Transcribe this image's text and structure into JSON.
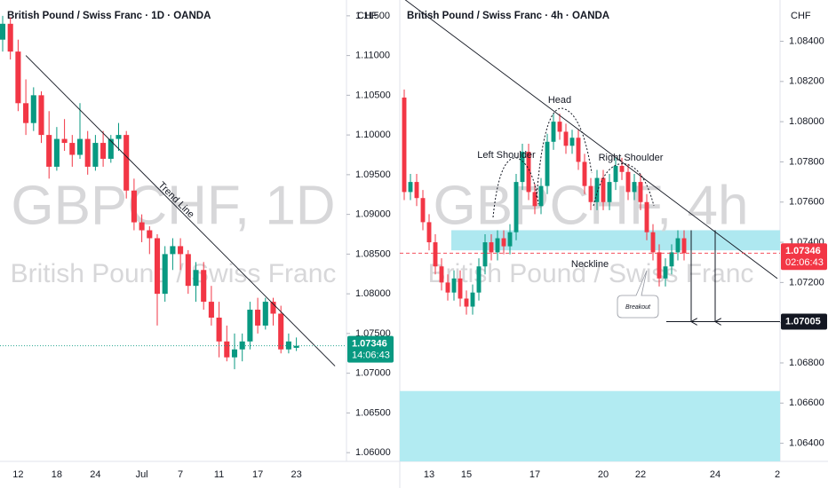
{
  "chart_data": [
    {
      "type": "candlestick",
      "title": "British Pound / Swiss Franc · 1D · OANDA",
      "currency": "CHF",
      "watermark": "GBPCHF, 1D",
      "watermark_subtitle": "British Pound / Swiss Franc",
      "up_color": "#089981",
      "down_color": "#f23645",
      "grid": false,
      "ylim": [
        1.0589,
        1.1161
      ],
      "yticks": [
        {
          "value": 1.06,
          "label": "1.06000"
        },
        {
          "value": 1.065,
          "label": "1.06500"
        },
        {
          "value": 1.07,
          "label": "1.07000"
        },
        {
          "value": 1.075,
          "label": "1.07500"
        },
        {
          "value": 1.08,
          "label": "1.08000"
        },
        {
          "value": 1.085,
          "label": "1.08500"
        },
        {
          "value": 1.09,
          "label": "1.09000"
        },
        {
          "value": 1.095,
          "label": "1.09500"
        },
        {
          "value": 1.1,
          "label": "1.10000"
        },
        {
          "value": 1.105,
          "label": "1.10500"
        },
        {
          "value": 1.11,
          "label": "1.11000"
        },
        {
          "value": 1.115,
          "label": "1.11500"
        }
      ],
      "categories": [
        null,
        null,
        "12",
        null,
        null,
        null,
        null,
        "18",
        null,
        null,
        null,
        null,
        "24",
        null,
        null,
        null,
        null,
        null,
        "Jul",
        null,
        null,
        null,
        null,
        "7",
        null,
        null,
        null,
        null,
        "11",
        null,
        null,
        null,
        null,
        "17",
        null,
        null,
        null,
        null,
        "23"
      ],
      "open": [
        1.112,
        1.114,
        1.1105,
        1.104,
        1.1015,
        1.105,
        1.1,
        1.096,
        1.0995,
        1.099,
        1.0975,
        1.0995,
        1.096,
        1.099,
        1.097,
        1.0995,
        1.1,
        1.093,
        1.089,
        1.088,
        1.087,
        1.08,
        1.085,
        1.086,
        1.085,
        1.081,
        1.083,
        1.079,
        1.077,
        1.074,
        1.072,
        1.073,
        1.074,
        1.078,
        1.076,
        1.079,
        1.0775,
        1.073,
        1.0732
      ],
      "high": [
        1.115,
        1.1148,
        1.112,
        1.107,
        1.106,
        1.1055,
        1.103,
        1.101,
        1.102,
        1.1,
        1.104,
        1.1005,
        1.1,
        1.1005,
        1.1,
        1.1015,
        1.1005,
        1.0945,
        1.09,
        1.0885,
        1.0875,
        1.086,
        1.087,
        1.087,
        1.0855,
        1.084,
        1.084,
        1.081,
        1.079,
        1.076,
        1.075,
        1.075,
        1.079,
        1.0795,
        1.0795,
        1.0795,
        1.0785,
        1.075,
        1.0745
      ],
      "low": [
        1.1105,
        1.1095,
        1.103,
        1.1,
        1.1005,
        1.099,
        1.0945,
        1.0955,
        1.098,
        1.096,
        1.097,
        1.095,
        1.0955,
        1.096,
        1.0965,
        1.098,
        1.092,
        1.088,
        1.0865,
        1.085,
        1.076,
        1.079,
        1.083,
        1.083,
        1.08,
        1.079,
        1.078,
        1.076,
        1.072,
        1.0715,
        1.0705,
        1.0715,
        1.073,
        1.075,
        1.0755,
        1.076,
        1.0725,
        1.0725,
        1.0728
      ],
      "close": [
        1.114,
        1.1105,
        1.104,
        1.1015,
        1.105,
        1.1,
        1.096,
        1.0995,
        1.099,
        1.0975,
        1.0995,
        1.096,
        1.099,
        1.097,
        1.0995,
        1.1,
        1.093,
        1.089,
        1.088,
        1.087,
        1.08,
        1.085,
        1.086,
        1.085,
        1.081,
        1.083,
        1.079,
        1.077,
        1.074,
        1.072,
        1.073,
        1.074,
        1.078,
        1.076,
        1.079,
        1.0775,
        1.073,
        1.074,
        1.07346
      ],
      "countdown": "14:06:43",
      "trend_line": {
        "label": "Trend Line",
        "from": [
          3,
          1.11
        ],
        "to": [
          43,
          1.0709
        ]
      }
    },
    {
      "type": "candlestick",
      "title": "British Pound / Swiss Franc · 4h · OANDA",
      "currency": "CHF",
      "watermark": "GBPCHF, 4h",
      "watermark_subtitle": "British Pound / Swiss Franc",
      "up_color": "#089981",
      "down_color": "#f23645",
      "grid": false,
      "ylim": [
        1.0631,
        1.0857
      ],
      "yticks": [
        {
          "value": 1.064,
          "label": "1.06400"
        },
        {
          "value": 1.066,
          "label": "1.06600"
        },
        {
          "value": 1.068,
          "label": "1.06800"
        },
        {
          "value": 1.07,
          "label": "1.07000"
        },
        {
          "value": 1.072,
          "label": "1.07200"
        },
        {
          "value": 1.074,
          "label": "1.07400"
        },
        {
          "value": 1.076,
          "label": "1.07600"
        },
        {
          "value": 1.078,
          "label": "1.07800"
        },
        {
          "value": 1.08,
          "label": "1.08000"
        },
        {
          "value": 1.082,
          "label": "1.08200"
        },
        {
          "value": 1.084,
          "label": "1.08400"
        }
      ],
      "categories": [
        null,
        null,
        null,
        null,
        "13",
        null,
        null,
        null,
        null,
        null,
        "15",
        null,
        null,
        null,
        null,
        null,
        null,
        null,
        null,
        null,
        null,
        "17",
        null,
        null,
        null,
        null,
        null,
        null,
        null,
        null,
        null,
        null,
        "20",
        null,
        null,
        null,
        null,
        null,
        "22",
        null,
        null,
        null,
        null,
        null,
        null,
        null,
        null,
        null,
        null,
        null,
        "24",
        null,
        null,
        null,
        null,
        null,
        null,
        null,
        null,
        null,
        "2"
      ],
      "open": [
        1.0812,
        1.0765,
        1.077,
        1.0762,
        1.075,
        1.074,
        1.0728,
        1.072,
        1.0715,
        1.0722,
        1.0712,
        1.0708,
        1.0715,
        1.0728,
        1.074,
        1.0735,
        1.0742,
        1.0738,
        1.0745,
        1.077,
        1.0785,
        1.0765,
        1.0758,
        1.0768,
        1.079,
        1.08,
        1.0795,
        1.0788,
        1.0792,
        1.078,
        1.0768,
        1.076,
        1.0772,
        1.076,
        1.077,
        1.0778,
        1.0775,
        1.0765,
        1.077,
        1.076,
        1.0745,
        1.0735,
        1.0722,
        1.0728,
        1.0735,
        1.0742,
        null,
        null,
        null,
        null,
        null,
        null,
        null,
        null,
        null,
        null,
        null,
        null,
        null,
        null,
        null
      ],
      "high": [
        1.0816,
        1.0774,
        1.0774,
        1.0766,
        1.0754,
        1.0744,
        1.0732,
        1.0724,
        1.0726,
        1.0726,
        1.0716,
        1.0719,
        1.0732,
        1.0744,
        1.0744,
        1.0746,
        1.0746,
        1.0749,
        1.0774,
        1.0789,
        1.0789,
        1.0769,
        1.0772,
        1.0794,
        1.0804,
        1.0804,
        1.0799,
        1.0796,
        1.0796,
        1.0784,
        1.0772,
        1.0776,
        1.0776,
        1.0774,
        1.0782,
        1.0782,
        1.0779,
        1.0774,
        1.0774,
        1.0764,
        1.0749,
        1.0739,
        1.0732,
        1.0739,
        1.0746,
        1.0746,
        null,
        null,
        null,
        null,
        null,
        null,
        null,
        null,
        null,
        null,
        null,
        null,
        null,
        null,
        null
      ],
      "low": [
        1.0761,
        1.0761,
        1.0758,
        1.0746,
        1.0736,
        1.0724,
        1.0716,
        1.0711,
        1.0711,
        1.0708,
        1.0704,
        1.0704,
        1.0711,
        1.0724,
        1.0731,
        1.0731,
        1.0734,
        1.0734,
        1.0741,
        1.0766,
        1.0761,
        1.0754,
        1.0754,
        1.0764,
        1.0786,
        1.0791,
        1.0784,
        1.0784,
        1.0776,
        1.0764,
        1.0756,
        1.0756,
        1.0756,
        1.0756,
        1.0766,
        1.0771,
        1.0761,
        1.0761,
        1.0756,
        1.0741,
        1.0731,
        1.0718,
        1.0718,
        1.0724,
        1.0731,
        1.0731,
        null,
        null,
        null,
        null,
        null,
        null,
        null,
        null,
        null,
        null,
        null,
        null,
        null,
        null,
        null
      ],
      "close": [
        1.0765,
        1.077,
        1.0762,
        1.075,
        1.074,
        1.0728,
        1.072,
        1.0715,
        1.0722,
        1.0712,
        1.0708,
        1.0715,
        1.0728,
        1.074,
        1.0735,
        1.0742,
        1.0738,
        1.0745,
        1.077,
        1.0785,
        1.0765,
        1.0758,
        1.0768,
        1.079,
        1.08,
        1.0795,
        1.0788,
        1.0792,
        1.078,
        1.0768,
        1.076,
        1.0772,
        1.076,
        1.077,
        1.0778,
        1.0775,
        1.0765,
        1.077,
        1.076,
        1.0745,
        1.0735,
        1.0722,
        1.0728,
        1.0735,
        1.0742,
        1.07346,
        null,
        null,
        null,
        null,
        null,
        null,
        null,
        null,
        null,
        null,
        null,
        null,
        null,
        null,
        null
      ],
      "countdown": "02:06:43",
      "zones": [
        {
          "color": "#aee8f0",
          "range": [
            1.0746,
            1.0736
          ]
        },
        {
          "color": "#b2ebf2",
          "range": [
            1.0666,
            1.0631
          ]
        }
      ],
      "target": 1.07005,
      "trend_line": {
        "from": [
          0,
          1.0861
        ],
        "to": [
          60,
          1.0722
        ]
      },
      "annotations": {
        "head": "Head",
        "left_shoulder": "Left Shoulder",
        "right_shoulder": "Right Shoulder",
        "neckline": "Neckline",
        "breakout": "Breakout"
      }
    }
  ]
}
